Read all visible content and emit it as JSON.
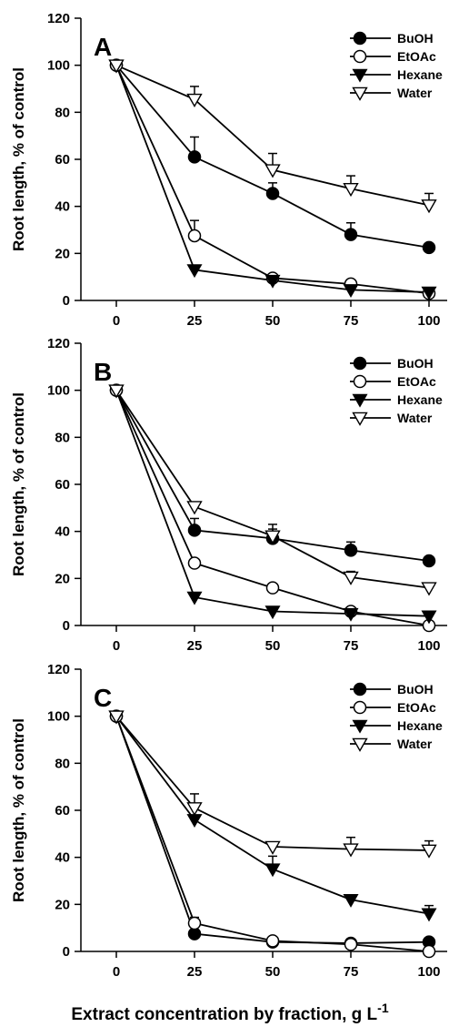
{
  "figure": {
    "xlabel": "Extract concentration by fraction, g L",
    "xlabel_sup": "-1"
  },
  "chart_data": [
    {
      "type": "line",
      "panel": "A",
      "x": [
        0,
        25,
        50,
        75,
        100
      ],
      "xticks": [
        "0",
        "25",
        "50",
        "75",
        "100"
      ],
      "yticks": [
        "0",
        "20",
        "40",
        "60",
        "80",
        "100",
        "120"
      ],
      "ylim": [
        0,
        120
      ],
      "ylabel": "Root length, % of control",
      "legend_position": "top-right",
      "series": [
        {
          "name": "BuOH",
          "marker": "filled-circle",
          "values": [
            100,
            61,
            45.5,
            28,
            22.5
          ],
          "err": [
            0,
            8.5,
            4.5,
            5,
            1
          ]
        },
        {
          "name": "EtOAc",
          "marker": "open-circle",
          "values": [
            100,
            27.5,
            9.5,
            7,
            3
          ],
          "err": [
            0,
            6.5,
            1,
            1,
            1
          ]
        },
        {
          "name": "Hexane",
          "marker": "filled-triangle-down",
          "values": [
            100,
            13,
            8.5,
            4.5,
            3.5
          ],
          "err": [
            0,
            1,
            1,
            1,
            1
          ]
        },
        {
          "name": "Water",
          "marker": "open-triangle-down",
          "values": [
            100,
            85.5,
            55.5,
            47.5,
            40.5
          ],
          "err": [
            0,
            5.5,
            7,
            5.5,
            5
          ]
        }
      ]
    },
    {
      "type": "line",
      "panel": "B",
      "x": [
        0,
        25,
        50,
        75,
        100
      ],
      "xticks": [
        "0",
        "25",
        "50",
        "75",
        "100"
      ],
      "yticks": [
        "0",
        "20",
        "40",
        "60",
        "80",
        "100",
        "120"
      ],
      "ylim": [
        0,
        120
      ],
      "ylabel": "Root length, % of control",
      "legend_position": "top-right",
      "series": [
        {
          "name": "BuOH",
          "marker": "filled-circle",
          "values": [
            100,
            40.5,
            37,
            32,
            27.5
          ],
          "err": [
            0,
            5,
            4,
            3.5,
            1
          ]
        },
        {
          "name": "EtOAc",
          "marker": "open-circle",
          "values": [
            100,
            26.5,
            16,
            6,
            0
          ],
          "err": [
            0,
            1,
            1,
            1,
            0
          ]
        },
        {
          "name": "Hexane",
          "marker": "filled-triangle-down",
          "values": [
            100,
            12,
            6,
            5,
            4
          ],
          "err": [
            0,
            1,
            1,
            1,
            1
          ]
        },
        {
          "name": "Water",
          "marker": "open-triangle-down",
          "values": [
            100,
            50.5,
            38,
            20.5,
            16
          ],
          "err": [
            0,
            1,
            5,
            2.5,
            1.5
          ]
        }
      ]
    },
    {
      "type": "line",
      "panel": "C",
      "x": [
        0,
        25,
        50,
        75,
        100
      ],
      "xticks": [
        "0",
        "25",
        "50",
        "75",
        "100"
      ],
      "yticks": [
        "0",
        "20",
        "40",
        "60",
        "80",
        "100",
        "120"
      ],
      "ylim": [
        0,
        120
      ],
      "ylabel": "Root length, % of control",
      "legend_position": "top-right",
      "series": [
        {
          "name": "BuOH",
          "marker": "filled-circle",
          "values": [
            100,
            7.5,
            4,
            3.5,
            4
          ],
          "err": [
            0,
            1,
            1,
            1,
            1
          ]
        },
        {
          "name": "EtOAc",
          "marker": "open-circle",
          "values": [
            100,
            12,
            4.5,
            3,
            0
          ],
          "err": [
            0,
            2.5,
            1,
            1,
            0
          ]
        },
        {
          "name": "Hexane",
          "marker": "filled-triangle-down",
          "values": [
            100,
            56,
            35,
            22,
            16
          ],
          "err": [
            0,
            7,
            5.5,
            2,
            3.5
          ]
        },
        {
          "name": "Water",
          "marker": "open-triangle-down",
          "values": [
            100,
            61,
            44.5,
            43.5,
            43
          ],
          "err": [
            0,
            6,
            1,
            5,
            4
          ]
        }
      ]
    }
  ]
}
